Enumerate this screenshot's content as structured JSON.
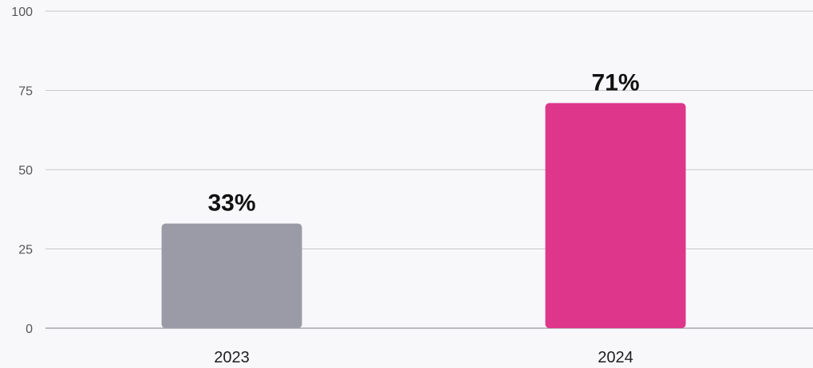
{
  "chart_data": {
    "type": "bar",
    "categories": [
      "2023",
      "2024"
    ],
    "values": [
      33,
      71
    ],
    "data_labels": [
      "33%",
      "71%"
    ],
    "bar_colors": [
      "#9b9aa7",
      "#de368b"
    ],
    "title": "",
    "xlabel": "",
    "ylabel": "",
    "ylim": [
      0,
      100
    ],
    "yticks": [
      0,
      25,
      50,
      75,
      100
    ],
    "ytick_labels": [
      "0",
      "25",
      "50",
      "75",
      "100"
    ],
    "grid": true,
    "legend": "none"
  }
}
